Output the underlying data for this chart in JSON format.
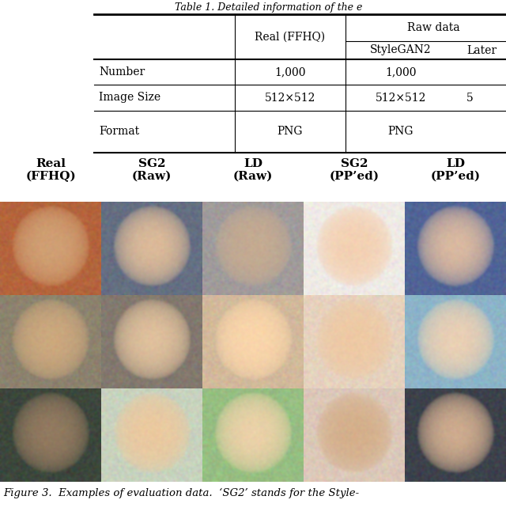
{
  "title_text": "Table 1. Detailed information of the e",
  "col_labels": [
    "Real\n(FFHQ)",
    "SG2\n(Raw)",
    "LD\n(Raw)",
    "SG2\n(PP’ed)",
    "LD\n(PP’ed)"
  ],
  "caption": "Figure 3.  Examples of evaluation data.  ‘SG2’ stands for the Style-",
  "bg_color": "#ffffff",
  "text_color": "#000000",
  "table_row_labels": [
    "Number",
    "Image Size",
    "Format"
  ],
  "table_col1_vals": [
    "1,000",
    "512×512",
    "PNG"
  ],
  "table_col2_vals": [
    "1,000",
    "512×512",
    "PNG"
  ],
  "table_col3_partial": [
    "",
    "5",
    ""
  ],
  "table_header1": "Real (FFHQ)",
  "table_header_rawdata": "Raw data",
  "table_header2a": "StyleGAN2",
  "table_header2b": "Later"
}
